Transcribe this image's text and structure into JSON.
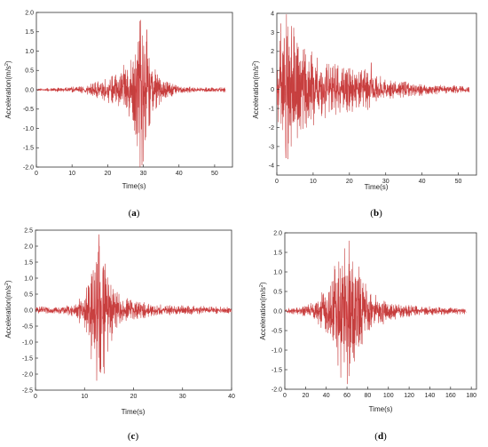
{
  "colors": {
    "trace": "#e8434b",
    "trace_dark": "#8a3a2c",
    "axis": "#333333",
    "background": "#ffffff"
  },
  "chart_data": [
    {
      "id": "a",
      "type": "line",
      "caption_label": "a",
      "xlabel": "Time(s)",
      "ylabel": "Acceleration(m/s",
      "ylabel_sup": "2",
      "ylabel_close": ")",
      "xlim": [
        0,
        55
      ],
      "ylim": [
        -2.0,
        2.0
      ],
      "xticks": [
        0,
        10,
        20,
        30,
        40,
        50
      ],
      "yticks": [
        -2.0,
        -1.5,
        -1.0,
        -0.5,
        0.0,
        0.5,
        1.0,
        1.5,
        2.0
      ],
      "ytick_decimals": 1,
      "grid": false,
      "series": [
        {
          "envelope": {
            "t": [
              0,
              5,
              10,
              15,
              20,
              24,
              27,
              29,
              30,
              31,
              33,
              36,
              40,
              45,
              50,
              53
            ],
            "amp": [
              0.02,
              0.04,
              0.06,
              0.12,
              0.25,
              0.45,
              0.7,
              1.7,
              1.5,
              1.1,
              0.5,
              0.2,
              0.08,
              0.05,
              0.05,
              0.05
            ]
          },
          "extremes": [
            {
              "x": 29.2,
              "y": 1.8
            },
            {
              "x": 29.6,
              "y": -1.95
            },
            {
              "x": 31.0,
              "y": 1.55
            },
            {
              "x": 30.5,
              "y": -1.3
            }
          ],
          "duration": 53
        }
      ]
    },
    {
      "id": "b",
      "type": "line",
      "caption_label": "b",
      "xlabel": "Time(s)",
      "ylabel": "Acceleration(m/s",
      "ylabel_sup": "2",
      "ylabel_close": ")",
      "xlim": [
        0,
        55
      ],
      "ylim": [
        -4.5,
        4.0
      ],
      "xticks": [
        0,
        10,
        20,
        30,
        40,
        50
      ],
      "yticks": [
        -4,
        -3,
        -2,
        -1,
        0,
        1,
        2,
        3,
        4
      ],
      "ytick_decimals": 0,
      "grid": false,
      "series": [
        {
          "envelope": {
            "t": [
              0,
              1,
              3,
              5,
              8,
              12,
              16,
              20,
              25,
              28,
              30,
              35,
              40,
              45,
              50,
              53
            ],
            "amp": [
              0.5,
              2.8,
              3.3,
              2.6,
              1.8,
              1.3,
              1.1,
              1.0,
              0.9,
              0.6,
              0.4,
              0.35,
              0.25,
              0.2,
              0.15,
              0.15
            ]
          },
          "extremes": [
            {
              "x": 2.0,
              "y": 2.7
            },
            {
              "x": 2.5,
              "y": -3.6
            },
            {
              "x": 4.0,
              "y": 2.4
            },
            {
              "x": 26.0,
              "y": 1.4
            }
          ],
          "duration": 53
        }
      ]
    },
    {
      "id": "c",
      "type": "line",
      "caption_label": "c",
      "xlabel": "Time(s)",
      "ylabel": "Acceleration(m/s",
      "ylabel_sup": "2",
      "ylabel_close": ")",
      "xlim": [
        0,
        40
      ],
      "ylim": [
        -2.5,
        2.5
      ],
      "xticks": [
        0,
        10,
        20,
        30,
        40
      ],
      "yticks": [
        -2.5,
        -2.0,
        -1.5,
        -1.0,
        -0.5,
        0.0,
        0.5,
        1.0,
        1.5,
        2.0,
        2.5
      ],
      "ytick_decimals": 1,
      "grid": false,
      "series": [
        {
          "envelope": {
            "t": [
              0,
              4,
              8,
              10,
              11,
              12,
              13,
              14,
              15,
              17,
              20,
              25,
              30,
              35,
              40
            ],
            "amp": [
              0.08,
              0.1,
              0.15,
              0.5,
              1.0,
              1.5,
              2.0,
              1.6,
              0.9,
              0.4,
              0.25,
              0.15,
              0.12,
              0.1,
              0.08
            ]
          },
          "extremes": [
            {
              "x": 13.0,
              "y": 2.0
            },
            {
              "x": 12.5,
              "y": -2.2
            }
          ],
          "duration": 40
        }
      ]
    },
    {
      "id": "d",
      "type": "line",
      "caption_label": "d",
      "xlabel": "Time(s)",
      "ylabel": "Acceleration(m/s",
      "ylabel_sup": "2",
      "ylabel_close": ")",
      "xlim": [
        0,
        185
      ],
      "ylim": [
        -2.0,
        2.0
      ],
      "xticks": [
        0,
        20,
        40,
        60,
        80,
        100,
        120,
        140,
        160,
        180
      ],
      "yticks": [
        -2.0,
        -1.5,
        -1.0,
        -0.5,
        0.0,
        0.5,
        1.0,
        1.5,
        2.0
      ],
      "ytick_decimals": 1,
      "grid": false,
      "series": [
        {
          "envelope": {
            "t": [
              0,
              15,
              30,
              40,
              50,
              58,
              62,
              70,
              80,
              90,
              110,
              130,
              150,
              175
            ],
            "amp": [
              0.05,
              0.08,
              0.2,
              0.5,
              1.1,
              1.6,
              1.5,
              1.0,
              0.5,
              0.3,
              0.15,
              0.1,
              0.08,
              0.06
            ]
          },
          "extremes": [
            {
              "x": 58.0,
              "y": 1.6
            },
            {
              "x": 54.0,
              "y": -1.7
            },
            {
              "x": 48.0,
              "y": 1.15
            }
          ],
          "duration": 175
        }
      ]
    }
  ]
}
